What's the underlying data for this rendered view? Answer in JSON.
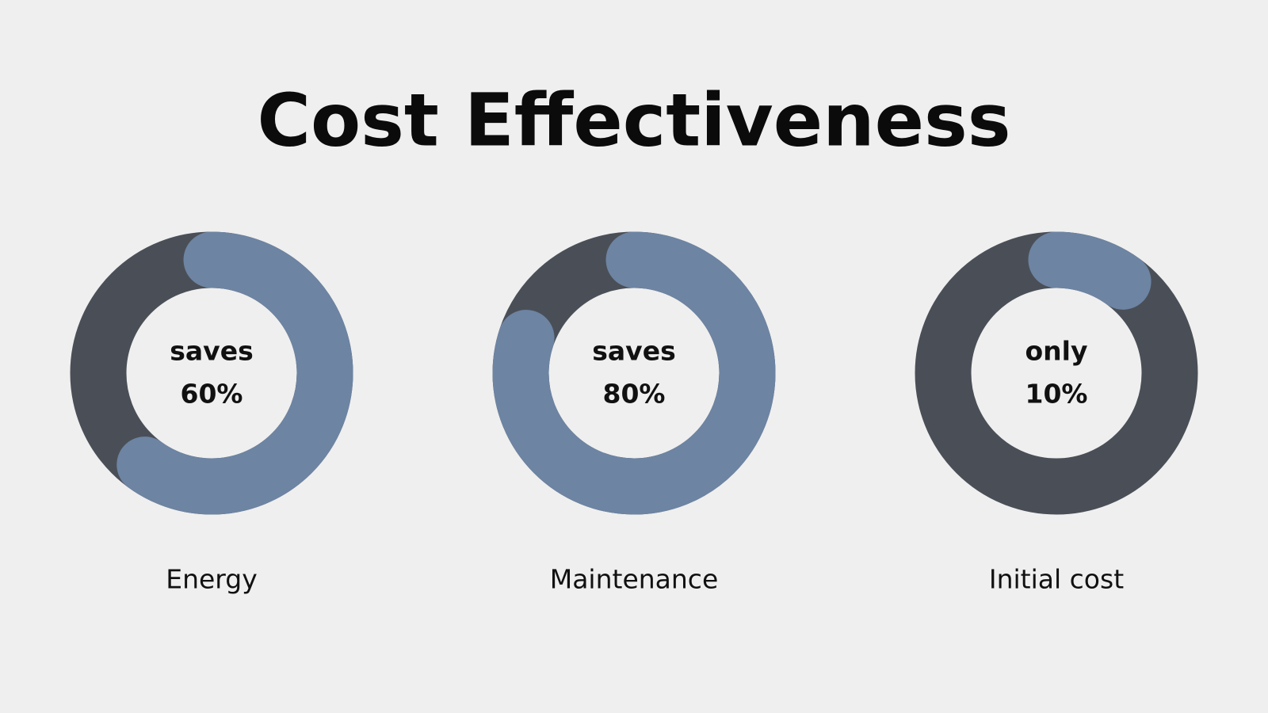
{
  "title": "Cost Effectiveness",
  "chart_data": [
    {
      "type": "donut",
      "category": "Energy",
      "text": "saves",
      "values": [
        60
      ],
      "value_labels": [
        "60%"
      ],
      "color": "#6d84a3",
      "track_color": "#4a4f57"
    },
    {
      "type": "donut",
      "category": "Maintenance",
      "text": "saves",
      "values": [
        80
      ],
      "value_labels": [
        "80%"
      ],
      "color": "#6d84a3",
      "track_color": "#4a4f57"
    },
    {
      "type": "donut",
      "category": "Initial cost",
      "text": "only",
      "values": [
        10
      ],
      "value_labels": [
        "10%"
      ],
      "color": "#6d84a3",
      "track_color": "#4a4f57"
    }
  ]
}
